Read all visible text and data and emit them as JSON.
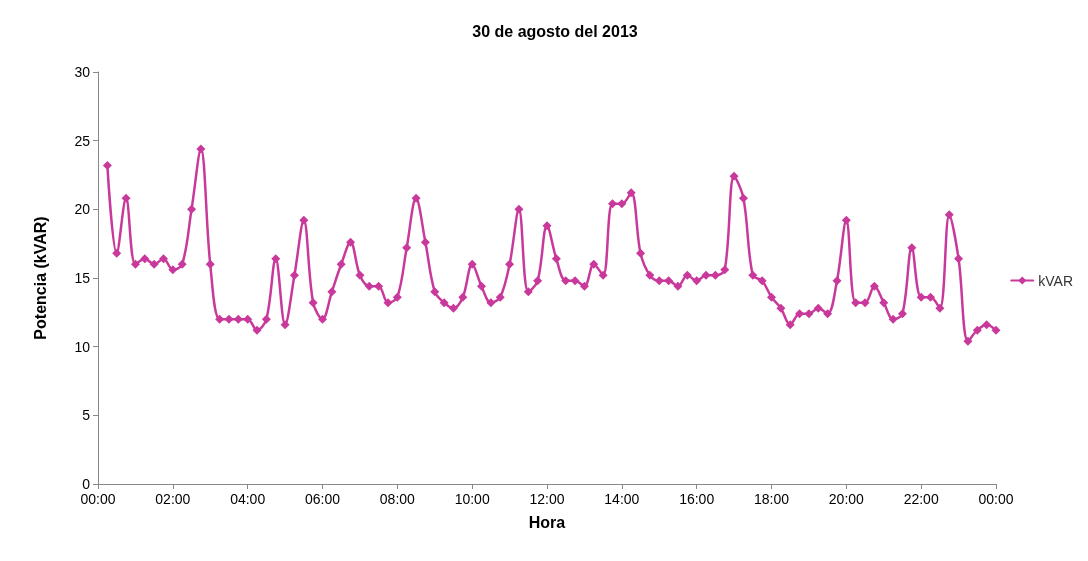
{
  "chart_data": {
    "type": "line",
    "title": "30 de agosto del 2013",
    "xlabel": "Hora",
    "ylabel": "Potencia (kVAR)",
    "x": [
      0.25,
      0.5,
      0.75,
      1,
      1.25,
      1.5,
      1.75,
      2,
      2.25,
      2.5,
      2.75,
      3,
      3.25,
      3.5,
      3.75,
      4,
      4.25,
      4.5,
      4.75,
      5,
      5.25,
      5.5,
      5.75,
      6,
      6.25,
      6.5,
      6.75,
      7,
      7.25,
      7.5,
      7.75,
      8,
      8.25,
      8.5,
      8.75,
      9,
      9.25,
      9.5,
      9.75,
      10,
      10.25,
      10.5,
      10.75,
      11,
      11.25,
      11.5,
      11.75,
      12,
      12.25,
      12.5,
      12.75,
      13,
      13.25,
      13.5,
      13.75,
      14,
      14.25,
      14.5,
      14.75,
      15,
      15.25,
      15.5,
      15.75,
      16,
      16.25,
      16.5,
      16.75,
      17,
      17.25,
      17.5,
      17.75,
      18,
      18.25,
      18.5,
      18.75,
      19,
      19.25,
      19.5,
      19.75,
      20,
      20.25,
      20.5,
      20.75,
      21,
      21.25,
      21.5,
      21.75,
      22,
      22.25,
      22.5,
      22.75,
      23,
      23.25,
      23.5,
      23.75,
      24
    ],
    "series": [
      {
        "name": "kVAR",
        "color": "#c8399b",
        "values": [
          23.2,
          16.8,
          20.8,
          16.0,
          16.4,
          16.0,
          16.4,
          15.6,
          16.0,
          20.0,
          24.4,
          16.0,
          12.0,
          12.0,
          12.0,
          12.0,
          11.2,
          12.0,
          16.4,
          11.6,
          15.2,
          19.2,
          13.2,
          12.0,
          14.0,
          16.0,
          17.6,
          15.2,
          14.4,
          14.4,
          13.2,
          13.6,
          17.2,
          20.8,
          17.6,
          14.0,
          13.2,
          12.8,
          13.6,
          16.0,
          14.4,
          13.2,
          13.6,
          16.0,
          20.0,
          14.0,
          14.8,
          18.8,
          16.4,
          14.8,
          14.8,
          14.4,
          16.0,
          15.2,
          20.4,
          20.4,
          21.2,
          16.8,
          15.2,
          14.8,
          14.8,
          14.4,
          15.2,
          14.8,
          15.2,
          15.2,
          15.6,
          22.4,
          20.8,
          15.2,
          14.8,
          13.6,
          12.8,
          11.6,
          12.4,
          12.4,
          12.8,
          12.4,
          14.8,
          19.2,
          13.2,
          13.2,
          14.4,
          13.2,
          12.0,
          12.4,
          17.2,
          13.6,
          13.6,
          12.8,
          19.6,
          16.4,
          10.4,
          11.2,
          11.6,
          11.2
        ]
      }
    ],
    "xlim": [
      0,
      24
    ],
    "xticks": [
      {
        "value": 0,
        "label": "00:00"
      },
      {
        "value": 2,
        "label": "02:00"
      },
      {
        "value": 4,
        "label": "04:00"
      },
      {
        "value": 6,
        "label": "06:00"
      },
      {
        "value": 8,
        "label": "08:00"
      },
      {
        "value": 10,
        "label": "10:00"
      },
      {
        "value": 12,
        "label": "12:00"
      },
      {
        "value": 14,
        "label": "14:00"
      },
      {
        "value": 16,
        "label": "16:00"
      },
      {
        "value": 18,
        "label": "18:00"
      },
      {
        "value": 20,
        "label": "20:00"
      },
      {
        "value": 22,
        "label": "22:00"
      },
      {
        "value": 24,
        "label": "00:00"
      }
    ],
    "ylim": [
      0,
      30
    ],
    "yticks": [
      0,
      5,
      10,
      15,
      20,
      25,
      30
    ],
    "legend": "right",
    "marker": "diamond",
    "line_style": "solid"
  }
}
